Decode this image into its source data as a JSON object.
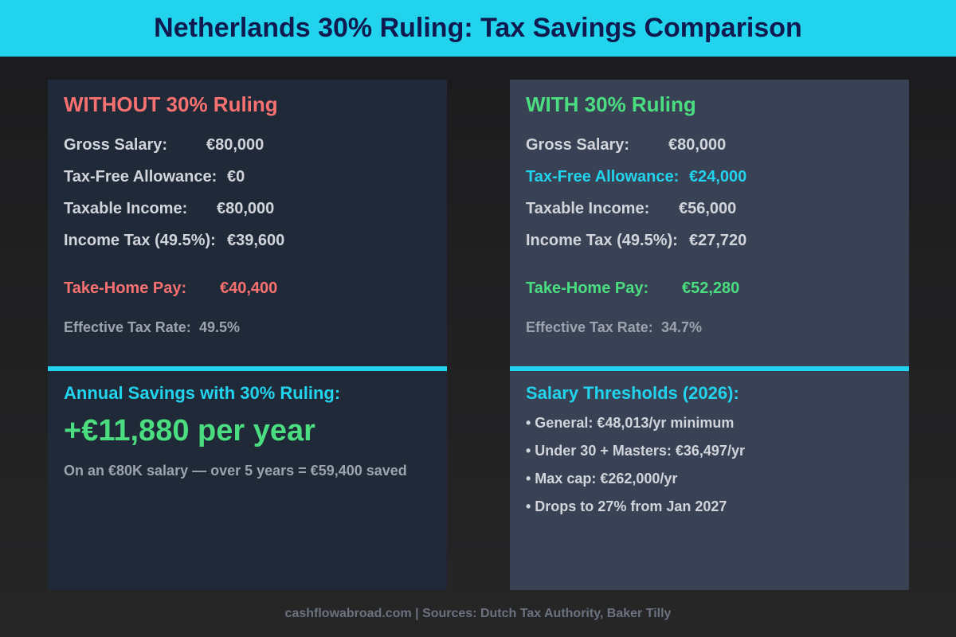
{
  "title": "Netherlands 30% Ruling: Tax Savings Comparison",
  "colors": {
    "header": "#22d3ee",
    "negative": "#f87171",
    "positive": "#4ade80",
    "accent": "#22d3ee"
  },
  "without": {
    "heading": "WITHOUT 30% Ruling",
    "rows": [
      {
        "label": "Gross Salary:",
        "value": "€80,000"
      },
      {
        "label": "Tax-Free Allowance:",
        "value": "€0"
      },
      {
        "label": "Taxable Income:",
        "value": "€80,000"
      },
      {
        "label": "Income Tax (49.5%):",
        "value": "€39,600"
      }
    ],
    "take_home": {
      "label": "Take-Home Pay:",
      "value": "€40,400"
    },
    "effective": {
      "label": "Effective Tax Rate:",
      "value": "49.5%"
    }
  },
  "with": {
    "heading": "WITH 30% Ruling",
    "rows": [
      {
        "label": "Gross Salary:",
        "value": "€80,000"
      },
      {
        "label": "Tax-Free Allowance:",
        "value": "€24,000"
      },
      {
        "label": "Taxable Income:",
        "value": "€56,000"
      },
      {
        "label": "Income Tax (49.5%):",
        "value": "€27,720"
      }
    ],
    "take_home": {
      "label": "Take-Home Pay:",
      "value": "€52,280"
    },
    "effective": {
      "label": "Effective Tax Rate:",
      "value": "34.7%"
    }
  },
  "savings": {
    "heading": "Annual Savings with 30% Ruling:",
    "amount": "+€11,880 per year",
    "note": "On an €80K salary — over 5 years = €59,400 saved"
  },
  "thresholds": {
    "heading": "Salary Thresholds (2026):",
    "items": [
      "• General: €48,013/yr minimum",
      "• Under 30 + Masters: €36,497/yr",
      "• Max cap: €262,000/yr",
      "• Drops to 27% from Jan 2027"
    ]
  },
  "footer": "cashflowabroad.com | Sources: Dutch Tax Authority, Baker Tilly"
}
